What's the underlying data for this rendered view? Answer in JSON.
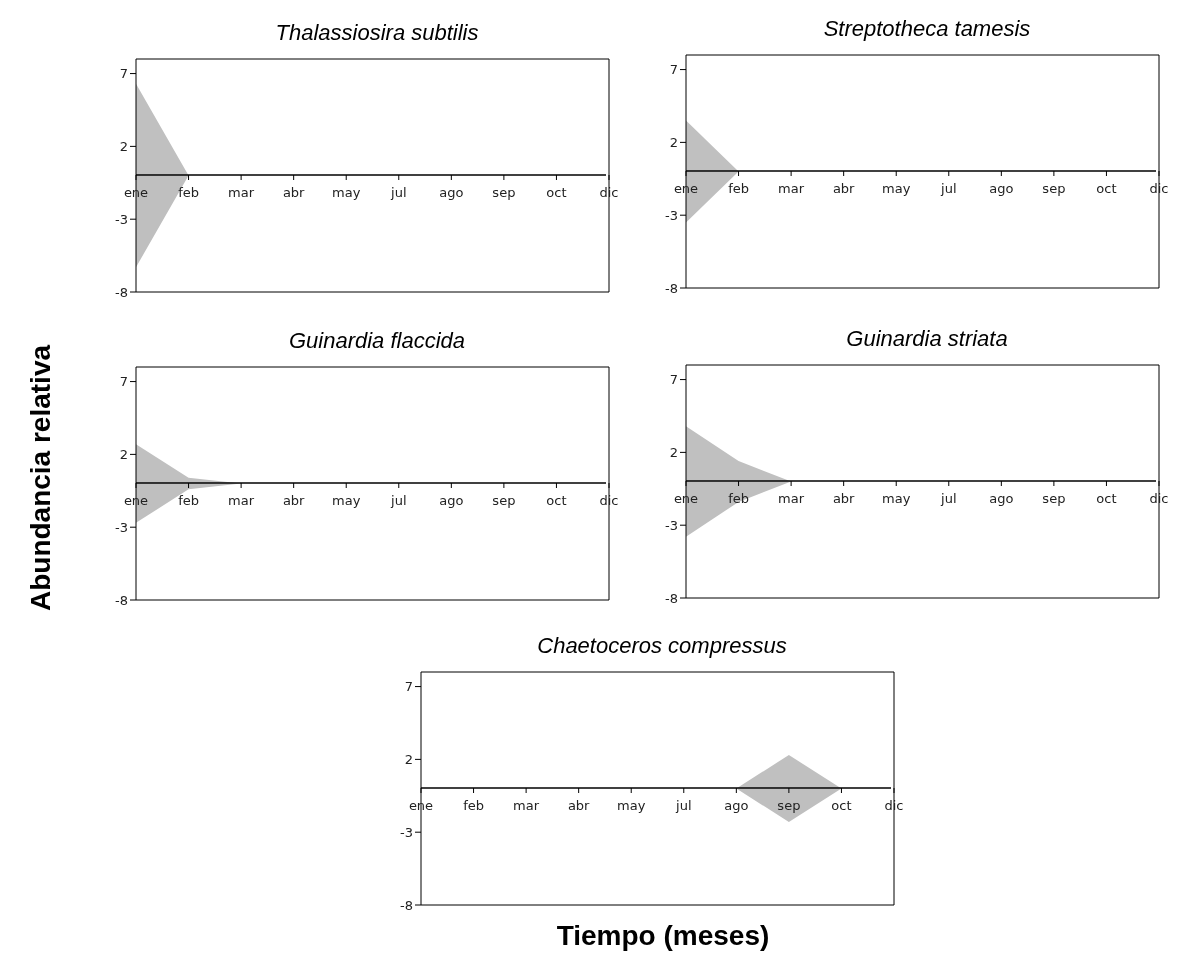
{
  "chart_data": [
    {
      "type": "area",
      "title": "Thalassiosira subtilis",
      "ylabel": "Abundancia relativa",
      "categories": [
        "ene",
        "feb",
        "mar",
        "abr",
        "may",
        "jul",
        "ago",
        "sep",
        "oct",
        "dic"
      ],
      "ylim": [
        -8,
        8
      ],
      "yticks": [
        7,
        2,
        -3,
        -8
      ],
      "series": [
        {
          "color": "#c0c0c0",
          "values": [
            6.3,
            0,
            0,
            0,
            0,
            0,
            0,
            0,
            0,
            0
          ]
        },
        {
          "color": "#bfbfbf",
          "values": [
            -6.3,
            0,
            0,
            0,
            0,
            0,
            0,
            0,
            0,
            0
          ]
        }
      ]
    },
    {
      "type": "area",
      "title": "Streptotheca tamesis",
      "categories": [
        "ene",
        "feb",
        "mar",
        "abr",
        "may",
        "jul",
        "ago",
        "sep",
        "oct",
        "dic"
      ],
      "ylim": [
        -8,
        8
      ],
      "yticks": [
        7,
        2,
        -3,
        -8
      ],
      "series": [
        {
          "color": "#c0c0c0",
          "values": [
            3.5,
            0,
            0,
            0,
            0,
            0,
            0,
            0,
            0,
            0
          ]
        },
        {
          "color": "#bfbfbf",
          "values": [
            -3.5,
            0,
            0,
            0,
            0,
            0,
            0,
            0,
            0,
            0
          ]
        }
      ]
    },
    {
      "type": "area",
      "title": "Guinardia flaccida",
      "categories": [
        "ene",
        "feb",
        "mar",
        "abr",
        "may",
        "jul",
        "ago",
        "sep",
        "oct",
        "dic"
      ],
      "ylim": [
        -8,
        8
      ],
      "yticks": [
        7,
        2,
        -3,
        -8
      ],
      "series": [
        {
          "color": "#c0c0c0",
          "values": [
            2.7,
            0.4,
            0,
            0,
            0,
            0,
            0,
            0,
            0,
            0
          ]
        },
        {
          "color": "#bfbfbf",
          "values": [
            -2.7,
            -0.4,
            0,
            0,
            0,
            0,
            0,
            0,
            0,
            0
          ]
        }
      ]
    },
    {
      "type": "area",
      "title": "Guinardia striata",
      "categories": [
        "ene",
        "feb",
        "mar",
        "abr",
        "may",
        "jul",
        "ago",
        "sep",
        "oct",
        "dic"
      ],
      "ylim": [
        -8,
        8
      ],
      "yticks": [
        7,
        2,
        -3,
        -8
      ],
      "series": [
        {
          "color": "#c0c0c0",
          "values": [
            3.8,
            1.4,
            0,
            0,
            0,
            0,
            0,
            0,
            0,
            0
          ]
        },
        {
          "color": "#bfbfbf",
          "values": [
            -3.8,
            -1.4,
            0,
            0,
            0,
            0,
            0,
            0,
            0,
            0
          ]
        }
      ]
    },
    {
      "type": "area",
      "title": "Chaetoceros compressus",
      "xlabel": "Tiempo (meses)",
      "categories": [
        "ene",
        "feb",
        "mar",
        "abr",
        "may",
        "jul",
        "ago",
        "sep",
        "oct",
        "dic"
      ],
      "ylim": [
        -8,
        8
      ],
      "yticks": [
        7,
        2,
        -3,
        -8
      ],
      "series": [
        {
          "color": "#c0c0c0",
          "values": [
            0,
            0,
            0,
            0,
            0,
            0,
            0,
            2.3,
            0,
            0
          ]
        },
        {
          "color": "#bfbfbf",
          "values": [
            0,
            0,
            0,
            0,
            0,
            0,
            0,
            -2.3,
            0,
            0
          ]
        }
      ]
    }
  ]
}
